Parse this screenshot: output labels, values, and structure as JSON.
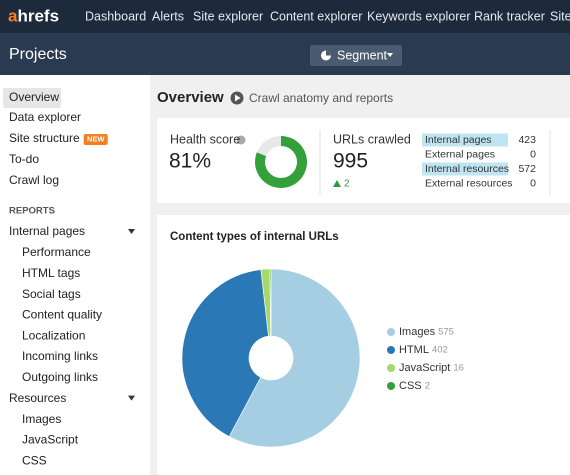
{
  "nav": {
    "logo_mark": "a",
    "logo_rest": "hrefs",
    "items": [
      "Dashboard",
      "Alerts",
      "Site explorer",
      "Content explorer",
      "Keywords explorer",
      "Rank tracker",
      "Site"
    ]
  },
  "header": {
    "title": "Projects",
    "segment": "Segment"
  },
  "sidebar": {
    "items": [
      "Overview",
      "Data explorer",
      "Site structure",
      "To-do",
      "Crawl log"
    ],
    "badge": "NEW",
    "section": "REPORTS",
    "groups": [
      {
        "label": "Internal pages",
        "items": [
          "Performance",
          "HTML tags",
          "Social tags",
          "Content quality",
          "Localization",
          "Incoming links",
          "Outgoing links"
        ]
      },
      {
        "label": "Resources",
        "items": [
          "Images",
          "JavaScript",
          "CSS"
        ]
      }
    ]
  },
  "overview": {
    "title": "Overview",
    "link": "Crawl anatomy and reports"
  },
  "health": {
    "label": "Health score",
    "score": {
      "value": 81,
      "label": "81%"
    }
  },
  "urls": {
    "label": "URLs crawled",
    "total": 995,
    "change": 2,
    "rows": [
      {
        "name": "Internal pages",
        "value": 423,
        "highlight": true
      },
      {
        "name": "External pages",
        "value": 0,
        "highlight": false
      },
      {
        "name": "Internal resources",
        "value": 572,
        "highlight": true
      },
      {
        "name": "External resources",
        "value": 0,
        "highlight": false
      }
    ]
  },
  "content_types": {
    "title": "Content types of internal URLs",
    "slices": [
      {
        "name": "Images",
        "value": 575,
        "color": "#a6cee3"
      },
      {
        "name": "HTML",
        "value": 402,
        "color": "#2b78b6"
      },
      {
        "name": "JavaScript",
        "value": 16,
        "color": "#a8d86a"
      },
      {
        "name": "CSS",
        "value": 2,
        "color": "#35a03a"
      }
    ]
  }
}
